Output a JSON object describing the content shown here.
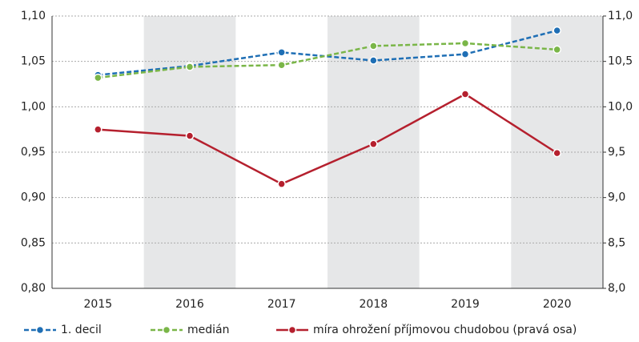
{
  "chart_data": {
    "type": "line",
    "categories": [
      "2015",
      "2016",
      "2017",
      "2018",
      "2019",
      "2020"
    ],
    "series": [
      {
        "name": "1. decil",
        "color": "#1f6fb5",
        "dashed": true,
        "values": [
          1.035,
          1.045,
          1.06,
          1.051,
          1.058,
          1.084
        ]
      },
      {
        "name": "medián",
        "color": "#7ab648",
        "dashed": true,
        "values": [
          1.032,
          1.044,
          1.046,
          1.067,
          1.07,
          1.063
        ]
      },
      {
        "name": "míra ohrožení příjmovou chudobou (pravá osa)",
        "color": "#b5202e",
        "dashed": false,
        "axis": "y2",
        "values": [
          9.75,
          9.68,
          9.15,
          9.59,
          10.14,
          9.49
        ]
      }
    ],
    "ylim": [
      0.8,
      1.1
    ],
    "yticks": [
      {
        "value": 0.8,
        "label": "0,80"
      },
      {
        "value": 0.85,
        "label": "0,85"
      },
      {
        "value": 0.9,
        "label": "0,90"
      },
      {
        "value": 0.95,
        "label": "0,95"
      },
      {
        "value": 1.0,
        "label": "1,00"
      },
      {
        "value": 1.05,
        "label": "1,05"
      },
      {
        "value": 1.1,
        "label": "1,10"
      }
    ],
    "y2lim": [
      8,
      11
    ],
    "y2ticks": [
      {
        "value": 8,
        "label": "8,0"
      },
      {
        "value": 8.5,
        "label": "8,5"
      },
      {
        "value": 9,
        "label": "9,0"
      },
      {
        "value": 9.5,
        "label": "9,5"
      },
      {
        "value": 10,
        "label": "10,0"
      },
      {
        "value": 10.5,
        "label": "10,5"
      },
      {
        "value": 11,
        "label": "11,0"
      }
    ],
    "grid": true,
    "legend": "bottom"
  }
}
